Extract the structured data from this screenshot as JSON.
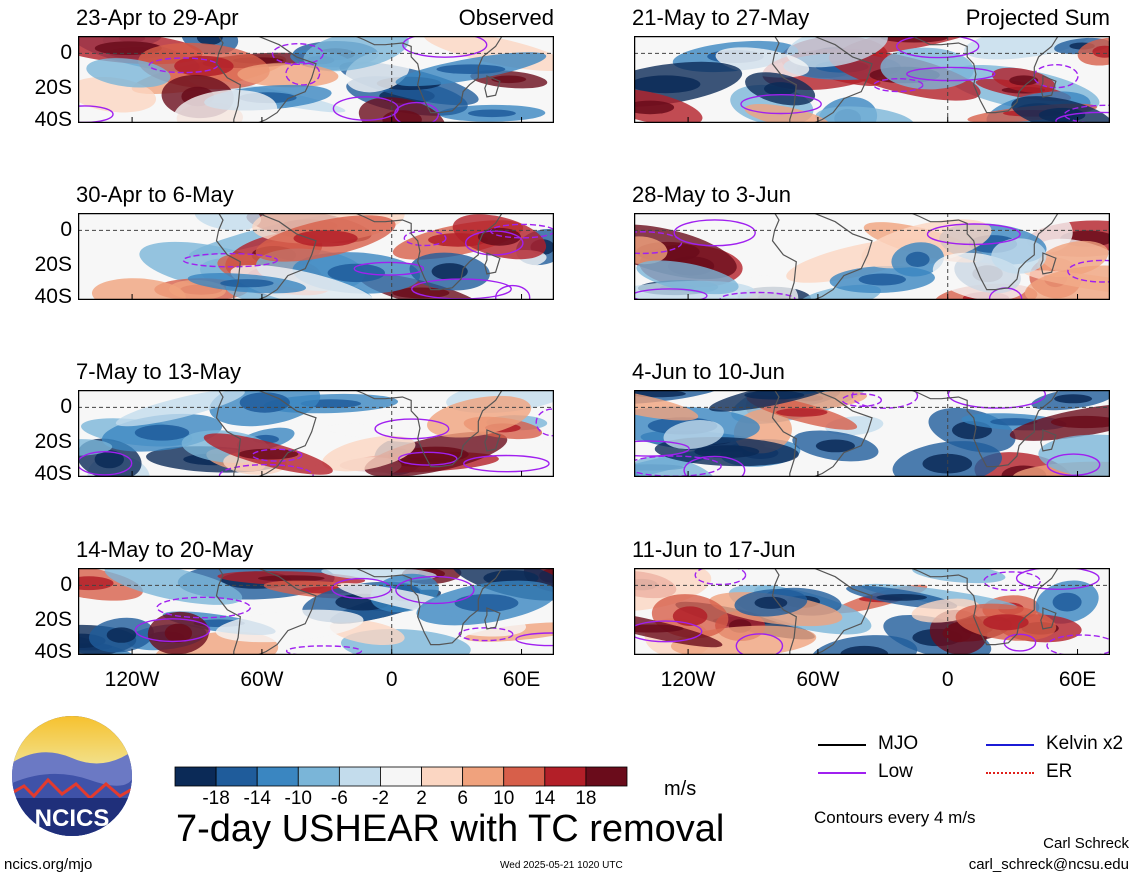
{
  "chart_data": {
    "type": "heatmap",
    "title": "7-day USHEAR with TC removal",
    "units": "m/s",
    "colorbar": {
      "ticks": [
        "-18",
        "-14",
        "-10",
        "-6",
        "-2",
        "2",
        "6",
        "10",
        "14",
        "18"
      ],
      "colors": [
        "#0b2a57",
        "#1f5c9b",
        "#3a86c1",
        "#7ab5d8",
        "#c3dcec",
        "#f6f6f6",
        "#fbd6c2",
        "#f0a27d",
        "#d75f4a",
        "#b31f28",
        "#6a0c1b"
      ]
    },
    "axes": {
      "lat_ticks": [
        "0",
        "20S",
        "40S"
      ],
      "lon_ticks": [
        "120W",
        "60W",
        "0",
        "60E"
      ],
      "lat_range": [
        -40,
        10
      ],
      "lon_range": [
        -145,
        75
      ]
    },
    "columns": [
      {
        "label": "Observed",
        "panels": [
          "23-Apr to 29-Apr",
          "30-Apr to 6-May",
          "7-May to 13-May",
          "14-May to 20-May"
        ]
      },
      {
        "label": "Projected Sum",
        "panels": [
          "21-May to 27-May",
          "28-May to 3-Jun",
          "4-Jun to 10-Jun",
          "11-Jun to 17-Jun"
        ]
      }
    ],
    "legend": [
      {
        "name": "MJO",
        "color": "#000000"
      },
      {
        "name": "Kelvin x2",
        "color": "#1b1bd6"
      },
      {
        "name": "Low",
        "color": "#a020f0"
      },
      {
        "name": "ER",
        "color": "#e0201b"
      }
    ],
    "contour_note": "Contours every 4 m/s"
  },
  "footer": {
    "author": "Carl Schreck",
    "email": "carl_schreck@ncsu.edu",
    "site": "ncics.org/mjo",
    "timestamp": "Wed 2025-05-21 1020 UTC",
    "logo_text": "NCICS"
  }
}
